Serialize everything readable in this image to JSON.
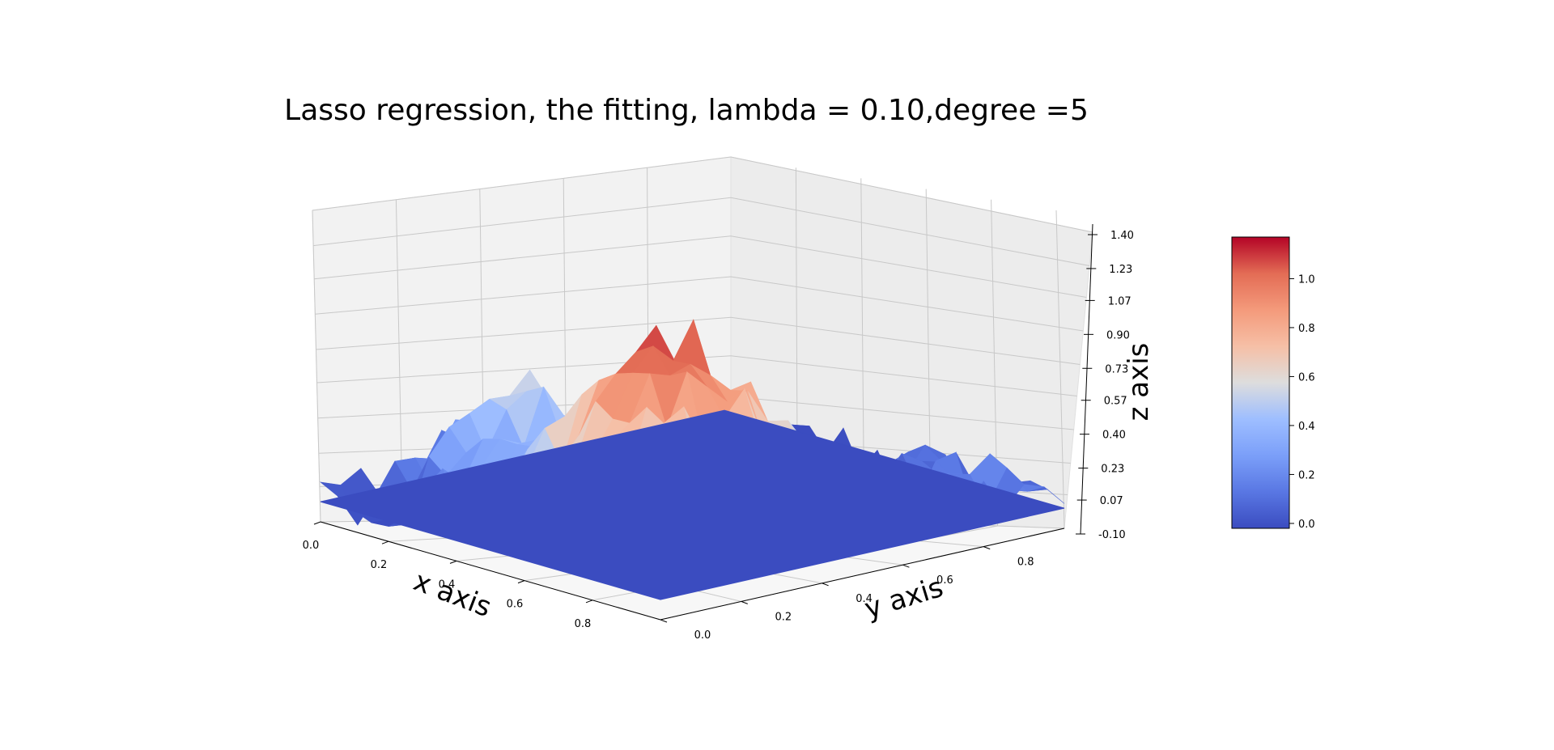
{
  "chart_data": {
    "type": "surface3d",
    "title": "Lasso regression, the fitting, lambda = 0.10,degree =5",
    "xlabel": "x axis",
    "ylabel": "y axis",
    "zlabel": "z axis",
    "x_ticks": [
      "0.0",
      "0.2",
      "0.4",
      "0.6",
      "0.8"
    ],
    "y_ticks": [
      "0.0",
      "0.2",
      "0.4",
      "0.6",
      "0.8"
    ],
    "z_ticks": [
      "-0.10",
      "0.07",
      "0.23",
      "0.40",
      "0.57",
      "0.73",
      "0.90",
      "1.07",
      "1.23",
      "1.40"
    ],
    "xlim": [
      0,
      1
    ],
    "ylim": [
      0,
      1
    ],
    "zlim": [
      -0.1,
      1.4
    ],
    "colormap": "coolwarm",
    "colorbar": {
      "ticks": [
        "0.0",
        "0.2",
        "0.4",
        "0.6",
        "0.8",
        "1.0"
      ],
      "range": [
        -0.02,
        1.17
      ]
    },
    "series": [
      {
        "kind": "noisy-surface",
        "description_values": "Franke-like function with noise, peak about 1.2 near x=0.1, y=0.3"
      },
      {
        "kind": "fitted-plane",
        "z": 0.0,
        "color": "#3b4cc0"
      }
    ],
    "grid": true
  }
}
